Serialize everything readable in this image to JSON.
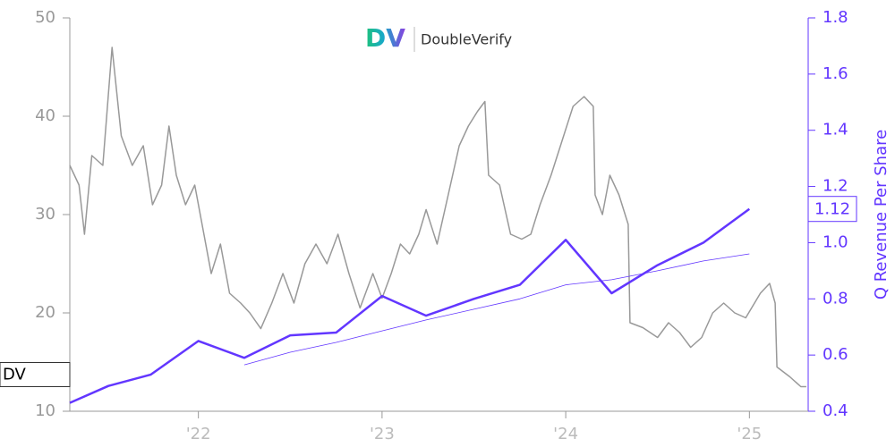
{
  "chart_data": {
    "type": "line",
    "logo_mark": "DV",
    "logo_text": "DoubleVerify",
    "y2_label": "Q Revenue Per Share",
    "xlim": [
      2021.3,
      2025.32
    ],
    "xticks": [
      {
        "value": 2022,
        "label": "'22"
      },
      {
        "value": 2023,
        "label": "'23"
      },
      {
        "value": 2024,
        "label": "'24"
      },
      {
        "value": 2025,
        "label": "'25"
      }
    ],
    "ylim": [
      10,
      50
    ],
    "yticks": [
      10,
      20,
      30,
      40,
      50
    ],
    "y2lim": [
      0.4,
      1.8
    ],
    "y2ticks": [
      0.4,
      0.6,
      0.8,
      {
        "value": 1,
        "label": "1.0"
      },
      1.2,
      1.4,
      1.6,
      1.8
    ],
    "series": [
      {
        "name": "DV",
        "color": "#999999",
        "line_width": 1.5,
        "axis": "y",
        "x": [
          2021.3,
          2021.35,
          2021.38,
          2021.42,
          2021.48,
          2021.53,
          2021.58,
          2021.64,
          2021.7,
          2021.75,
          2021.8,
          2021.84,
          2021.88,
          2021.93,
          2021.98,
          2022.02,
          2022.07,
          2022.12,
          2022.17,
          2022.23,
          2022.28,
          2022.34,
          2022.4,
          2022.46,
          2022.52,
          2022.58,
          2022.64,
          2022.7,
          2022.76,
          2022.82,
          2022.88,
          2022.95,
          2023.0,
          2023.05,
          2023.1,
          2023.15,
          2023.2,
          2023.24,
          2023.3,
          2023.36,
          2023.42,
          2023.47,
          2023.52,
          2023.56,
          2023.58,
          2023.64,
          2023.7,
          2023.76,
          2023.81,
          2023.86,
          2023.92,
          2023.98,
          2024.04,
          2024.1,
          2024.15,
          2024.16,
          2024.2,
          2024.24,
          2024.29,
          2024.34,
          2024.35,
          2024.42,
          2024.5,
          2024.56,
          2024.62,
          2024.68,
          2024.74,
          2024.8,
          2024.86,
          2024.92,
          2024.98,
          2025.06,
          2025.11,
          2025.14,
          2025.15,
          2025.22,
          2025.28,
          2025.31
        ],
        "values": [
          35,
          33,
          28,
          36,
          35,
          47,
          38,
          35,
          37,
          31,
          33,
          39,
          34,
          31,
          33,
          29,
          24,
          27,
          22,
          21,
          20,
          18.4,
          21,
          24,
          21,
          25,
          27,
          25,
          28,
          24,
          20.5,
          24,
          21.5,
          24,
          27,
          26,
          28,
          30.5,
          27,
          32,
          37,
          39,
          40.5,
          41.5,
          34,
          33,
          28,
          27.5,
          28,
          31,
          34,
          37.5,
          41,
          42,
          41,
          32,
          30,
          34,
          32,
          29,
          19,
          18.5,
          17.5,
          19,
          18,
          16.5,
          17.5,
          20,
          21,
          20,
          19.5,
          22,
          23,
          21,
          14.5,
          13.5,
          12.5,
          12.5
        ]
      },
      {
        "color": "#6236ff",
        "line_width": 2.5,
        "axis": "y2",
        "x": [
          2021.3,
          2021.51,
          2021.74,
          2022.0,
          2022.25,
          2022.5,
          2022.75,
          2023.0,
          2023.24,
          2023.5,
          2023.75,
          2024.0,
          2024.25,
          2024.5,
          2024.75,
          2025.0
        ],
        "values": [
          0.43,
          0.49,
          0.53,
          0.65,
          0.59,
          0.67,
          0.68,
          0.81,
          0.74,
          0.8,
          0.85,
          1.01,
          0.82,
          0.92,
          1.0,
          1.12
        ]
      },
      {
        "color": "#6236ff",
        "line_width": 0.8,
        "axis": "y2",
        "x": [
          2022.25,
          2022.5,
          2022.75,
          2023.0,
          2023.24,
          2023.5,
          2023.75,
          2024.0,
          2024.25,
          2024.5,
          2024.75,
          2025.0
        ],
        "values": [
          0.565,
          0.61,
          0.645,
          0.686,
          0.725,
          0.763,
          0.8,
          0.85,
          0.868,
          0.9,
          0.935,
          0.96
        ]
      }
    ]
  }
}
